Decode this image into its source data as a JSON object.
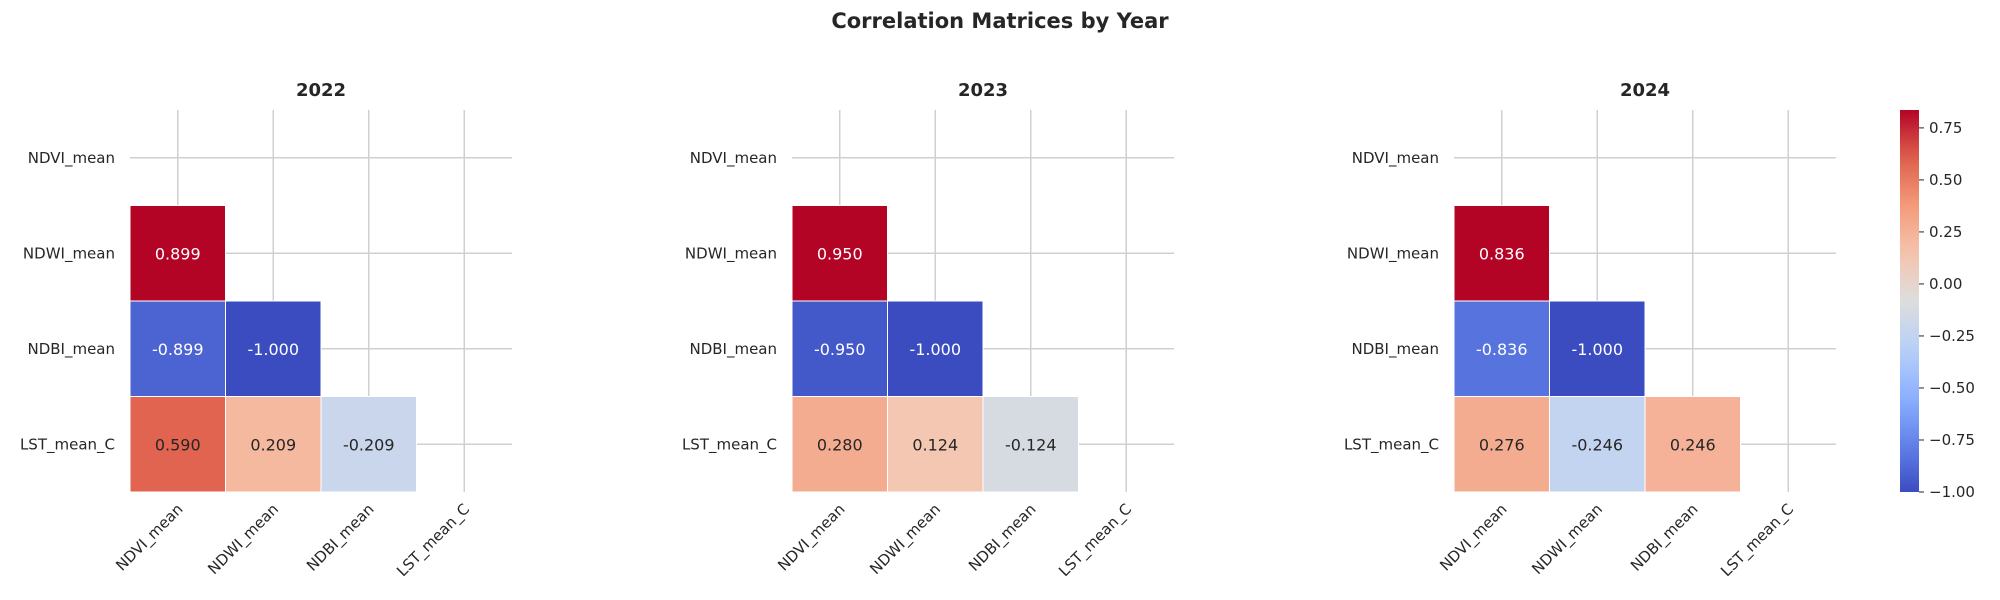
{
  "figure": {
    "title": "Correlation Matrices by Year"
  },
  "chart_data": [
    {
      "type": "heatmap",
      "title": "2022",
      "variables": [
        "NDVI_mean",
        "NDWI_mean",
        "NDBI_mean",
        "LST_mean_C"
      ],
      "mask": "upper-triangle-including-diagonal",
      "values": [
        [
          null,
          null,
          null,
          null
        ],
        [
          0.899,
          null,
          null,
          null
        ],
        [
          -0.899,
          -1.0,
          null,
          null
        ],
        [
          0.59,
          0.209,
          -0.209,
          null
        ]
      ],
      "labels": [
        [
          "",
          "",
          "",
          ""
        ],
        [
          "0.899",
          "",
          "",
          ""
        ],
        [
          "-0.899",
          "-1.000",
          "",
          ""
        ],
        [
          "0.590",
          "0.209",
          "-0.209",
          ""
        ]
      ],
      "grid": true
    },
    {
      "type": "heatmap",
      "title": "2023",
      "variables": [
        "NDVI_mean",
        "NDWI_mean",
        "NDBI_mean",
        "LST_mean_C"
      ],
      "mask": "upper-triangle-including-diagonal",
      "values": [
        [
          null,
          null,
          null,
          null
        ],
        [
          0.95,
          null,
          null,
          null
        ],
        [
          -0.95,
          -1.0,
          null,
          null
        ],
        [
          0.28,
          0.124,
          -0.124,
          null
        ]
      ],
      "labels": [
        [
          "",
          "",
          "",
          ""
        ],
        [
          "0.950",
          "",
          "",
          ""
        ],
        [
          "-0.950",
          "-1.000",
          "",
          ""
        ],
        [
          "0.280",
          "0.124",
          "-0.124",
          ""
        ]
      ],
      "grid": true
    },
    {
      "type": "heatmap",
      "title": "2024",
      "variables": [
        "NDVI_mean",
        "NDWI_mean",
        "NDBI_mean",
        "LST_mean_C"
      ],
      "mask": "upper-triangle-including-diagonal",
      "values": [
        [
          null,
          null,
          null,
          null
        ],
        [
          0.836,
          null,
          null,
          null
        ],
        [
          -0.836,
          -1.0,
          null,
          null
        ],
        [
          0.276,
          -0.246,
          0.246,
          null
        ]
      ],
      "labels": [
        [
          "",
          "",
          "",
          ""
        ],
        [
          "0.836",
          "",
          "",
          ""
        ],
        [
          "-0.836",
          "-1.000",
          "",
          ""
        ],
        [
          "0.276",
          "-0.246",
          "0.246",
          ""
        ]
      ],
      "grid": true
    }
  ],
  "colorbar": {
    "colormap": "coolwarm",
    "range": [
      -1.0,
      0.836
    ],
    "ticks": [
      0.75,
      0.5,
      0.25,
      0.0,
      -0.25,
      -0.5,
      -0.75,
      -1.0
    ],
    "tick_labels": [
      "0.75",
      "0.50",
      "0.25",
      "0.00",
      "−0.25",
      "−0.50",
      "−0.75",
      "−1.00"
    ]
  }
}
